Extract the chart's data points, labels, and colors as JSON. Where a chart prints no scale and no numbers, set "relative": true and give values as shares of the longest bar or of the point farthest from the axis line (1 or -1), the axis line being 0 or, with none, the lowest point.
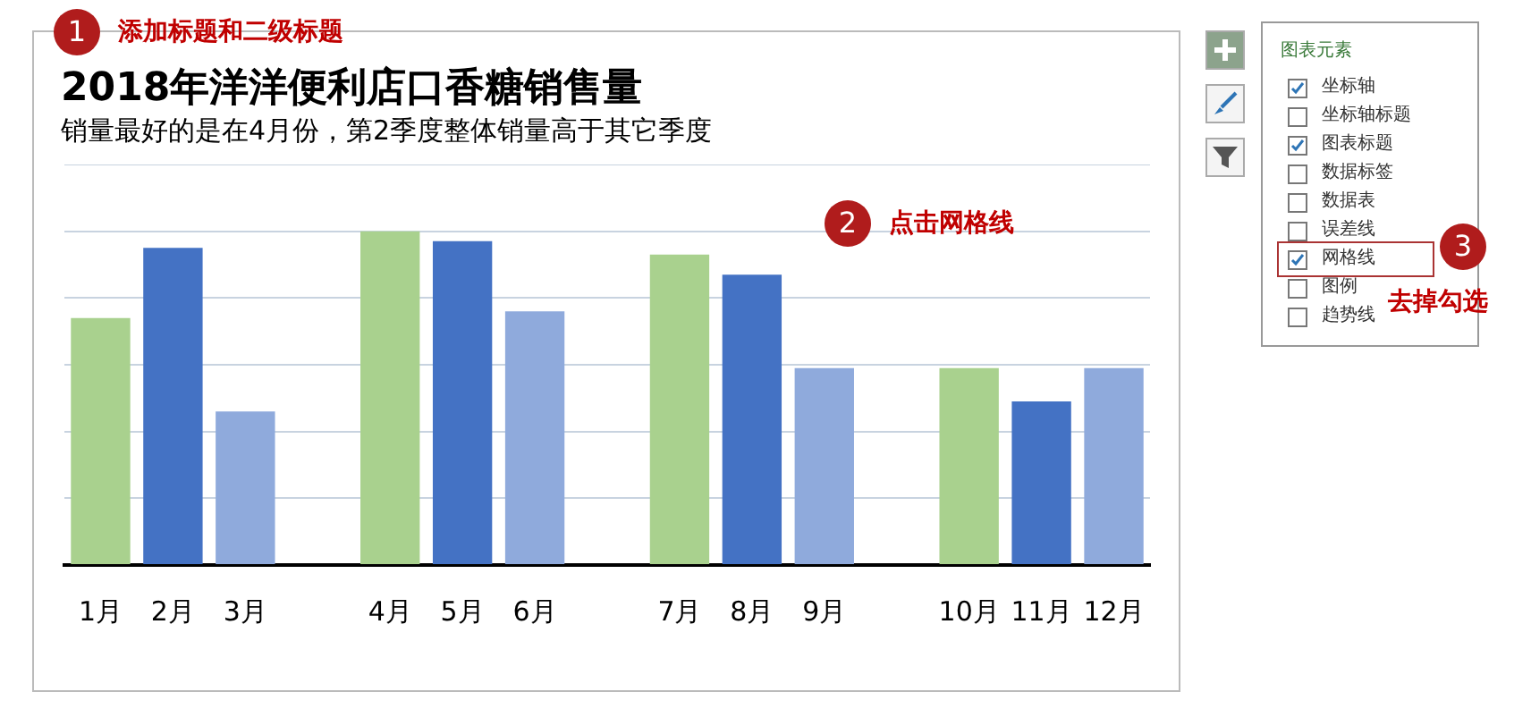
{
  "chart_data": {
    "type": "bar",
    "title": "2018年洋洋便利店口香糖销售量",
    "subtitle": "销量最好的是在4月份，第2季度整体销量高于其它季度",
    "categories": [
      "1月",
      "2月",
      "3月",
      null,
      "4月",
      "5月",
      "6月",
      null,
      "7月",
      "8月",
      "9月",
      null,
      "10月",
      "11月",
      "12月"
    ],
    "values": [
      0.74,
      0.95,
      0.46,
      null,
      1,
      0.97,
      0.76,
      null,
      0.93,
      0.87,
      0.59,
      null,
      0.59,
      0.49,
      0.59
    ],
    "colors": [
      "#a9d18e",
      "#4472c4",
      "#8faadc",
      null,
      "#a9d18e",
      "#4472c4",
      "#8faadc",
      null,
      "#a9d18e",
      "#4472c4",
      "#8faadc",
      null,
      "#a9d18e",
      "#4472c4",
      "#8faadc"
    ],
    "relative": true,
    "grid": true,
    "legend": false,
    "annotations": [
      "1",
      "添加标题和二级标题",
      "2",
      "点击网格线",
      "图表元素",
      "坐标轴",
      "坐标轴标题",
      "图表标题",
      "数据标签",
      "数据表",
      "误差线",
      "网格线",
      "图例",
      "趋势线",
      "3",
      "去掉勾选"
    ]
  }
}
